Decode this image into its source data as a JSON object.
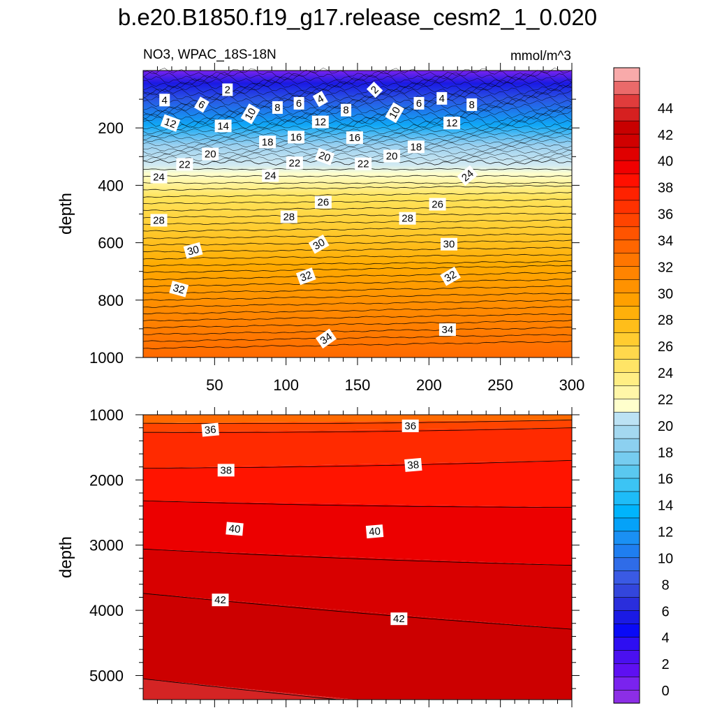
{
  "figure": {
    "title": "b.e20.B1850.f19_g17.release_cesm2_1_0.020",
    "left_string": "NO3, WPAC_18S-18N",
    "right_string": "mmol/m^3"
  },
  "chart_data": [
    {
      "type": "heatmap",
      "name": "upper",
      "ylabel": "depth",
      "xlim": [
        0,
        300
      ],
      "ylim": [
        1000,
        0
      ],
      "x_ticks": [
        50,
        100,
        150,
        200,
        250,
        300
      ],
      "y_ticks": [
        200,
        400,
        600,
        800,
        1000
      ],
      "contour_labels": [
        {
          "v": "2",
          "x": 59,
          "y": 67,
          "rot": 0
        },
        {
          "v": "2",
          "x": 162,
          "y": 67,
          "rot": -45
        },
        {
          "v": "4",
          "x": 15,
          "y": 103,
          "rot": 0
        },
        {
          "v": "4",
          "x": 124,
          "y": 99,
          "rot": -30
        },
        {
          "v": "4",
          "x": 209,
          "y": 97,
          "rot": 0
        },
        {
          "v": "6",
          "x": 41,
          "y": 119,
          "rot": 30
        },
        {
          "v": "6",
          "x": 109,
          "y": 114,
          "rot": 0
        },
        {
          "v": "6",
          "x": 193,
          "y": 114,
          "rot": 0
        },
        {
          "v": "8",
          "x": 94,
          "y": 129,
          "rot": 0
        },
        {
          "v": "8",
          "x": 142,
          "y": 138,
          "rot": 0
        },
        {
          "v": "8",
          "x": 230,
          "y": 119,
          "rot": 0
        },
        {
          "v": "10",
          "x": 75,
          "y": 151,
          "rot": -60
        },
        {
          "v": "10",
          "x": 176,
          "y": 147,
          "rot": -60
        },
        {
          "v": "12",
          "x": 19,
          "y": 183,
          "rot": 20
        },
        {
          "v": "12",
          "x": 124,
          "y": 179,
          "rot": 0
        },
        {
          "v": "12",
          "x": 216,
          "y": 183,
          "rot": 0
        },
        {
          "v": "14",
          "x": 56,
          "y": 193,
          "rot": 0
        },
        {
          "v": "16",
          "x": 107,
          "y": 232,
          "rot": 0
        },
        {
          "v": "16",
          "x": 148,
          "y": 234,
          "rot": 0
        },
        {
          "v": "18",
          "x": 87,
          "y": 249,
          "rot": 0
        },
        {
          "v": "18",
          "x": 191,
          "y": 266,
          "rot": 0
        },
        {
          "v": "20",
          "x": 47,
          "y": 291,
          "rot": 0
        },
        {
          "v": "20",
          "x": 127,
          "y": 300,
          "rot": 20
        },
        {
          "v": "20",
          "x": 174,
          "y": 298,
          "rot": 0
        },
        {
          "v": "22",
          "x": 29,
          "y": 327,
          "rot": 0
        },
        {
          "v": "22",
          "x": 106,
          "y": 322,
          "rot": 0
        },
        {
          "v": "22",
          "x": 154,
          "y": 325,
          "rot": 0
        },
        {
          "v": "24",
          "x": 11,
          "y": 371,
          "rot": 0
        },
        {
          "v": "24",
          "x": 89,
          "y": 366,
          "rot": 0
        },
        {
          "v": "24",
          "x": 227,
          "y": 366,
          "rot": -40
        },
        {
          "v": "26",
          "x": 126,
          "y": 459,
          "rot": 0
        },
        {
          "v": "26",
          "x": 206,
          "y": 466,
          "rot": 0
        },
        {
          "v": "28",
          "x": 11,
          "y": 522,
          "rot": 0
        },
        {
          "v": "28",
          "x": 102,
          "y": 510,
          "rot": 0
        },
        {
          "v": "28",
          "x": 185,
          "y": 515,
          "rot": 0
        },
        {
          "v": "30",
          "x": 35,
          "y": 627,
          "rot": -15
        },
        {
          "v": "30",
          "x": 123,
          "y": 605,
          "rot": -30
        },
        {
          "v": "30",
          "x": 214,
          "y": 605,
          "rot": 0
        },
        {
          "v": "32",
          "x": 25,
          "y": 761,
          "rot": 15
        },
        {
          "v": "32",
          "x": 114,
          "y": 717,
          "rot": -20
        },
        {
          "v": "32",
          "x": 215,
          "y": 717,
          "rot": -30
        },
        {
          "v": "34",
          "x": 128,
          "y": 934,
          "rot": -35
        },
        {
          "v": "34",
          "x": 213,
          "y": 903,
          "rot": 0
        }
      ]
    },
    {
      "type": "heatmap",
      "name": "lower",
      "ylabel": "depth",
      "xlim": [
        0,
        300
      ],
      "ylim": [
        5370,
        1000
      ],
      "y_ticks": [
        1000,
        2000,
        3000,
        4000,
        5000
      ],
      "contour_labels": [
        {
          "v": "36",
          "x": 47,
          "y": 1230,
          "rot": -5
        },
        {
          "v": "36",
          "x": 187,
          "y": 1170,
          "rot": 0
        },
        {
          "v": "38",
          "x": 58,
          "y": 1850,
          "rot": 0
        },
        {
          "v": "38",
          "x": 189,
          "y": 1770,
          "rot": -5
        },
        {
          "v": "40",
          "x": 64,
          "y": 2750,
          "rot": 5
        },
        {
          "v": "40",
          "x": 162,
          "y": 2790,
          "rot": -5
        },
        {
          "v": "42",
          "x": 54,
          "y": 3840,
          "rot": 0
        },
        {
          "v": "42",
          "x": 179,
          "y": 4130,
          "rot": 0
        }
      ]
    }
  ],
  "colorbar": {
    "labels": [
      "0",
      "2",
      "4",
      "6",
      "8",
      "10",
      "12",
      "14",
      "16",
      "18",
      "20",
      "22",
      "24",
      "26",
      "28",
      "30",
      "32",
      "34",
      "36",
      "38",
      "40",
      "42",
      "44"
    ],
    "colors": [
      "#8c2ee6",
      "#7a23ee",
      "#5e10f2",
      "#4a10f0",
      "#2e0ef2",
      "#0a0af6",
      "#1a1ae4",
      "#2a2edc",
      "#3346dc",
      "#3a5ae4",
      "#2f6ce8",
      "#1f7ef0",
      "#1a90f4",
      "#05a2f8",
      "#00b4fc",
      "#1ebcf8",
      "#3cc4f4",
      "#5ac8f0",
      "#76ccf0",
      "#8cd0f0",
      "#a4d8f0",
      "#bce2f4",
      "#ffffcc",
      "#fff6a8",
      "#ffee84",
      "#ffe466",
      "#ffd84c",
      "#ffcc30",
      "#ffbe1a",
      "#ffb00a",
      "#ffa000",
      "#ff9200",
      "#ff8400",
      "#ff7600",
      "#ff6600",
      "#ff5400",
      "#ff4400",
      "#ff3200",
      "#ff2200",
      "#ff1000",
      "#f00000",
      "#e00000",
      "#d00000",
      "#c80000",
      "#d62020",
      "#e03c3c",
      "#ea6a6a",
      "#f8aaaa"
    ]
  }
}
